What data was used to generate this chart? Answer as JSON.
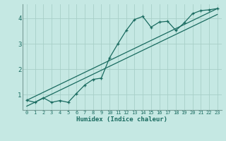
{
  "xlabel": "Humidex (Indice chaleur)",
  "bg_color": "#c5e8e3",
  "grid_color": "#a8cfc8",
  "line_color": "#1a6b60",
  "spine_color": "#7a9e98",
  "xlim": [
    -0.5,
    23.5
  ],
  "ylim": [
    0.4,
    4.55
  ],
  "xticks": [
    0,
    1,
    2,
    3,
    4,
    5,
    6,
    7,
    8,
    9,
    10,
    11,
    12,
    13,
    14,
    15,
    16,
    17,
    18,
    19,
    20,
    21,
    22,
    23
  ],
  "yticks": [
    1,
    2,
    3,
    4
  ],
  "main_x": [
    0,
    1,
    2,
    3,
    4,
    5,
    6,
    7,
    8,
    9,
    10,
    11,
    12,
    13,
    14,
    15,
    16,
    17,
    18,
    19,
    20,
    21,
    22,
    23
  ],
  "main_y": [
    0.78,
    0.7,
    0.88,
    0.7,
    0.77,
    0.7,
    1.05,
    1.38,
    1.6,
    1.65,
    2.45,
    3.0,
    3.52,
    3.95,
    4.07,
    3.65,
    3.85,
    3.88,
    3.52,
    3.82,
    4.18,
    4.3,
    4.33,
    4.38
  ],
  "line1_x": [
    0,
    23
  ],
  "line1_y": [
    0.78,
    4.38
  ],
  "line2_x": [
    0,
    23
  ],
  "line2_y": [
    0.55,
    4.15
  ]
}
